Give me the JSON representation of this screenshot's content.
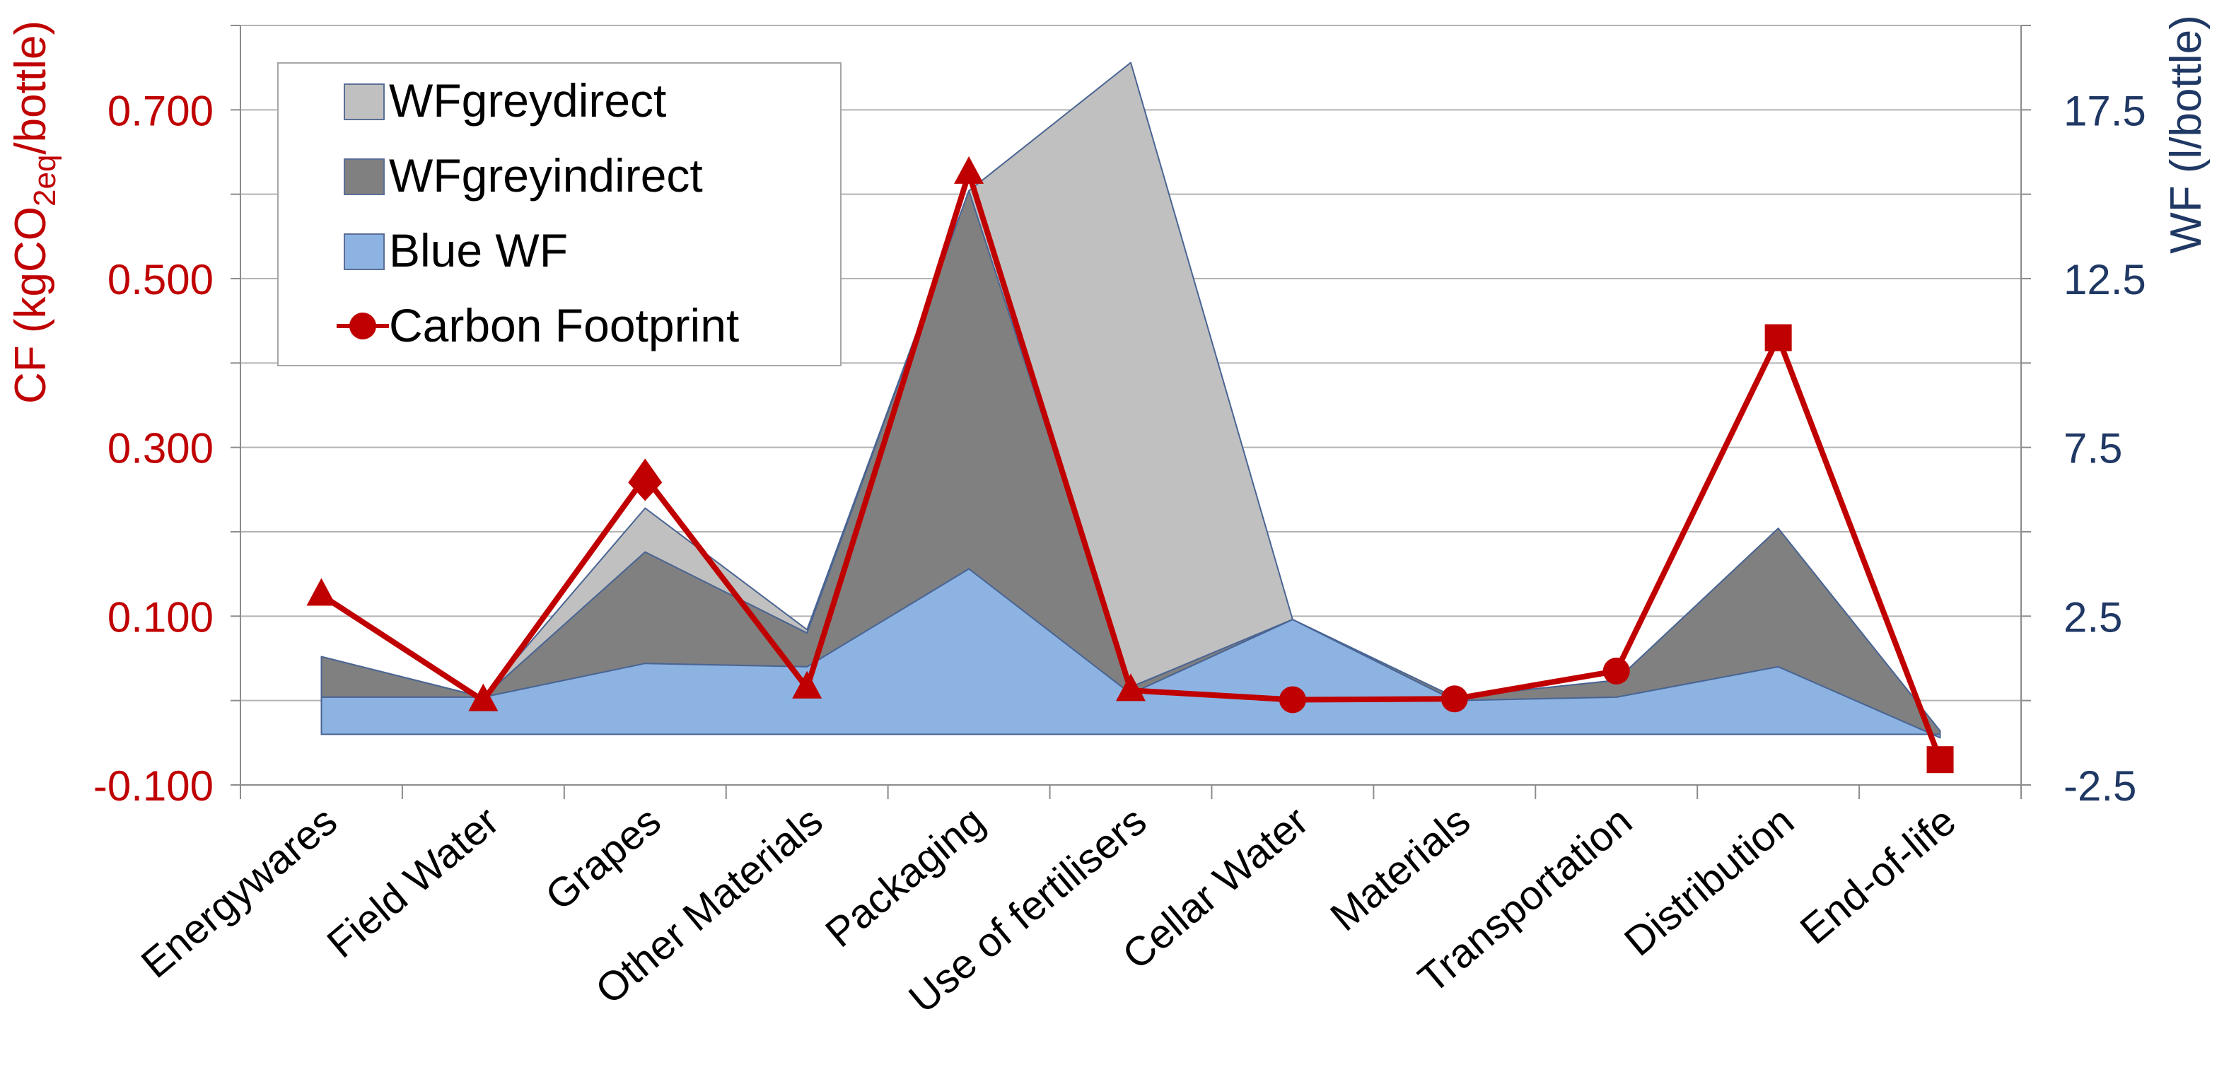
{
  "chart_data": {
    "type": "area",
    "categories": [
      "Energywares",
      "Field Water",
      "Grapes",
      "Other Materials",
      "Packaging",
      "Use of fertilisers",
      "Cellar Water",
      "Materials",
      "Transportation",
      "Distribution",
      "End-of-life"
    ],
    "left_axis": {
      "label_parts": {
        "pre": "CF (kgCO",
        "sub": "2eq",
        "post": "/bottle)"
      },
      "min": -0.1,
      "max": 0.8,
      "tick_labels": [
        "-0.100",
        "0.100",
        "0.300",
        "0.500",
        "0.700"
      ],
      "tick_values": [
        -0.1,
        0.1,
        0.3,
        0.5,
        0.7
      ],
      "color": "#c00000"
    },
    "right_axis": {
      "label": "WF (l/bottle)",
      "min": -2.5,
      "max": 20,
      "tick_labels": [
        "-2.5",
        "2.5",
        "7.5",
        "12.5",
        "17.5"
      ],
      "tick_values": [
        -2.5,
        2.5,
        7.5,
        12.5,
        17.5
      ],
      "color": "#1f3864"
    },
    "water_baseline": -1.0,
    "series": [
      {
        "name": "WFgreydirect",
        "kind": "stacked-area",
        "axis": "right",
        "color": "#c0c0c0",
        "values": [
          0.0,
          0.0,
          1.3,
          0.1,
          0.0,
          18.5,
          0.0,
          0.0,
          0.0,
          0.0,
          0.0
        ]
      },
      {
        "name": "WFgreyindirect",
        "kind": "stacked-area",
        "axis": "right",
        "color": "#808080",
        "values": [
          1.2,
          0.0,
          3.3,
          1.0,
          11.2,
          0.2,
          0.0,
          0.1,
          0.5,
          4.1,
          0.2
        ]
      },
      {
        "name": "Blue WF",
        "kind": "stacked-area",
        "axis": "right",
        "color": "#8db3e2",
        "values": [
          1.1,
          1.1,
          2.1,
          2.0,
          4.9,
          1.2,
          3.4,
          1.0,
          1.1,
          2.0,
          -0.1
        ]
      },
      {
        "name": "Carbon Footprint",
        "kind": "line",
        "axis": "left",
        "color": "#c00000",
        "values": [
          0.125,
          0.0,
          0.265,
          0.015,
          0.625,
          0.012,
          0.001,
          0.002,
          0.035,
          0.43,
          -0.07
        ],
        "markers": [
          "triangle",
          "triangle",
          "diamond",
          "triangle",
          "triangle",
          "triangle",
          "circle",
          "circle",
          "circle",
          "square",
          "square"
        ]
      }
    ],
    "legend": {
      "position": "top-left",
      "items": [
        "WFgreydirect",
        "WFgreyindirect",
        "Blue WF",
        "Carbon Footprint"
      ]
    },
    "grid": true
  }
}
